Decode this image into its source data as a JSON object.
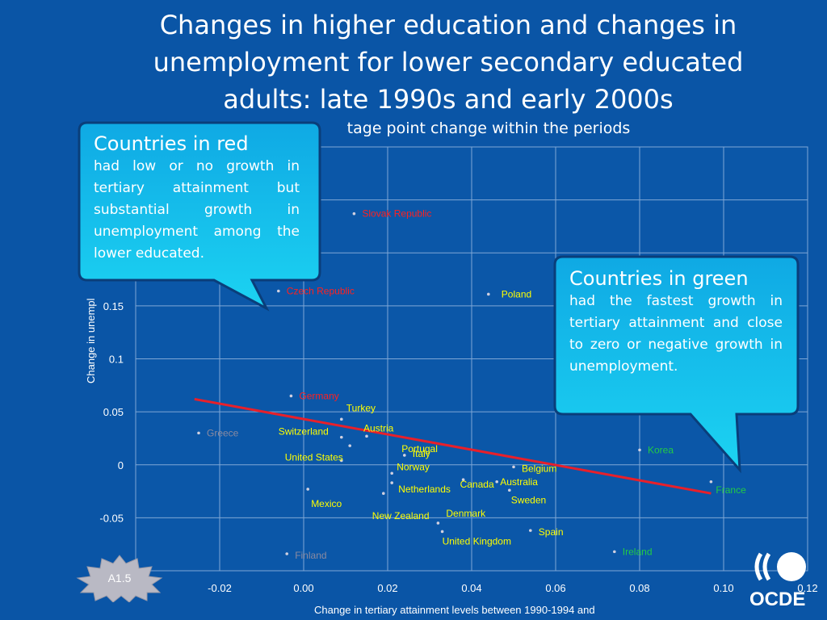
{
  "header": {
    "title_lines": [
      "Changes in higher education and changes in",
      "unemployment for lower secondary educated",
      "adults: late 1990s and early 2000s"
    ],
    "subtitle": "tage point change within the periods"
  },
  "callouts": {
    "red": {
      "heading": "Countries in red",
      "body": "had low or no growth in tertiary attainment but substantial growth in unemployment among the lower educated."
    },
    "green": {
      "heading": "Countries in green",
      "body": "had the fastest growth in tertiary attainment and close to zero or negative growth in unemployment."
    }
  },
  "badge": {
    "label": "A1.5"
  },
  "logo": {
    "text": "OCDE"
  },
  "colors": {
    "background": "#0a55a6",
    "plot_bg": "#0b57a8",
    "yellow": "#ffff00",
    "red": "#ff2020",
    "green": "#22cc44",
    "grey": "#8a8aa0",
    "trend": "#e8202a",
    "callout": "#16c4ee"
  },
  "chart_data": {
    "type": "scatter",
    "xlabel": "Change in tertiary attainment levels between 1990-1994 and",
    "ylabel": "Change in unempl",
    "xlim": [
      -0.04,
      0.12
    ],
    "ylim": [
      -0.1,
      0.3
    ],
    "x_ticks": [
      "-0.02",
      "0.00",
      "0.02",
      "0.04",
      "0.06",
      "0.08",
      "0.10",
      "0.12"
    ],
    "x_tick_values": [
      -0.02,
      0.0,
      0.02,
      0.04,
      0.06,
      0.08,
      0.1,
      0.12
    ],
    "y_ticks": [
      "0.15",
      "0.1",
      "0.05",
      "0",
      "-0.05"
    ],
    "y_tick_values": [
      0.15,
      0.1,
      0.05,
      0.0,
      -0.05
    ],
    "grid": true,
    "points": [
      {
        "label": "Slovak Republic",
        "x": 0.012,
        "y": 0.237,
        "group": "red"
      },
      {
        "label": "Czech Republic",
        "x": -0.006,
        "y": 0.164,
        "group": "red"
      },
      {
        "label": "Poland",
        "x": 0.044,
        "y": 0.161,
        "group": "yellow"
      },
      {
        "label": "Germany",
        "x": -0.003,
        "y": 0.065,
        "group": "red"
      },
      {
        "label": "Turkey",
        "x": 0.009,
        "y": 0.043,
        "group": "yellow"
      },
      {
        "label": "Austria",
        "x": 0.015,
        "y": 0.027,
        "group": "yellow"
      },
      {
        "label": "Switzerland",
        "x": 0.009,
        "y": 0.026,
        "group": "yellow"
      },
      {
        "label": "Portugal",
        "x": 0.011,
        "y": 0.018,
        "group": "yellow"
      },
      {
        "label": "Greece",
        "x": -0.025,
        "y": 0.03,
        "group": "grey"
      },
      {
        "label": "Italy",
        "x": 0.024,
        "y": 0.009,
        "group": "yellow"
      },
      {
        "label": "United States",
        "x": 0.009,
        "y": 0.004,
        "group": "yellow"
      },
      {
        "label": "Norway",
        "x": 0.021,
        "y": -0.008,
        "group": "yellow"
      },
      {
        "label": "Canada",
        "x": 0.038,
        "y": -0.014,
        "group": "yellow"
      },
      {
        "label": "Belgium",
        "x": 0.05,
        "y": -0.002,
        "group": "yellow"
      },
      {
        "label": "Australia",
        "x": 0.046,
        "y": -0.016,
        "group": "yellow"
      },
      {
        "label": "Netherlands",
        "x": 0.021,
        "y": -0.017,
        "group": "yellow"
      },
      {
        "label": "Sweden",
        "x": 0.049,
        "y": -0.024,
        "group": "yellow"
      },
      {
        "label": "Korea",
        "x": 0.08,
        "y": 0.014,
        "group": "green"
      },
      {
        "label": "France",
        "x": 0.097,
        "y": -0.016,
        "group": "green"
      },
      {
        "label": "Mexico",
        "x": 0.001,
        "y": -0.023,
        "group": "yellow"
      },
      {
        "label": "New Zealand",
        "x": 0.019,
        "y": -0.027,
        "group": "yellow"
      },
      {
        "label": "Denmark",
        "x": 0.032,
        "y": -0.055,
        "group": "yellow"
      },
      {
        "label": "United Kingdom",
        "x": 0.033,
        "y": -0.063,
        "group": "yellow"
      },
      {
        "label": "Spain",
        "x": 0.054,
        "y": -0.062,
        "group": "yellow"
      },
      {
        "label": "Ireland",
        "x": 0.074,
        "y": -0.082,
        "group": "green"
      },
      {
        "label": "Finland",
        "x": -0.004,
        "y": -0.084,
        "group": "grey"
      }
    ],
    "trendline": {
      "x": [
        -0.026,
        0.097
      ],
      "y": [
        0.062,
        -0.027
      ]
    }
  }
}
